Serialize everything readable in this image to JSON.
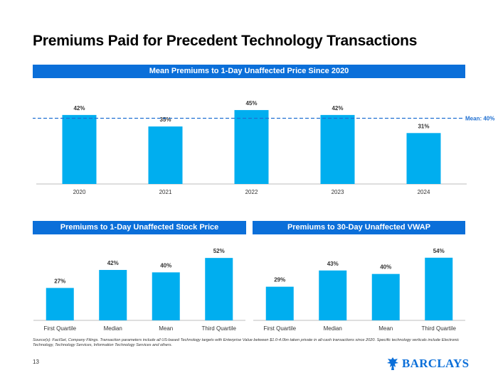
{
  "page": {
    "title": "Premiums Paid for Precedent Technology Transactions",
    "source_note": "Source(s): FactSet, Company Filings. Transaction parameters include all US-based Technology targets with Enterprise Value between $1.0-4.0bn taken private in all-cash transactions since 2020. Specific technology verticals include Electronic Technology, Technology Services, Information Technology Services and others.",
    "page_number": "13",
    "logo_text": "BARCLAYS"
  },
  "colors": {
    "bar": "#00AEEF",
    "banner": "#0B6FD9",
    "mean_line": "#1F6FD1"
  },
  "chart_data": [
    {
      "type": "bar",
      "title": "Mean Premiums to 1-Day Unaffected Price Since 2020",
      "categories": [
        "2020",
        "2021",
        "2022",
        "2023",
        "2024"
      ],
      "values": [
        42,
        35,
        45,
        42,
        31
      ],
      "value_labels": [
        "42%",
        "35%",
        "45%",
        "42%",
        "31%"
      ],
      "reference_line": {
        "value": 40,
        "label": "Mean: 40%",
        "style": "dashed"
      },
      "ylim": [
        0,
        48
      ]
    },
    {
      "type": "bar",
      "title": "Premiums to 1-Day Unaffected Stock Price",
      "categories": [
        "First Quartile",
        "Median",
        "Mean",
        "Third Quartile"
      ],
      "values": [
        27,
        42,
        40,
        52
      ],
      "value_labels": [
        "27%",
        "42%",
        "40%",
        "52%"
      ],
      "ylim": [
        0,
        58
      ]
    },
    {
      "type": "bar",
      "title": "Premiums to 30-Day Unaffected VWAP",
      "categories": [
        "First Quartile",
        "Median",
        "Mean",
        "Third Quartile"
      ],
      "values": [
        29,
        43,
        40,
        54
      ],
      "value_labels": [
        "29%",
        "43%",
        "40%",
        "54%"
      ],
      "ylim": [
        0,
        60
      ]
    }
  ]
}
